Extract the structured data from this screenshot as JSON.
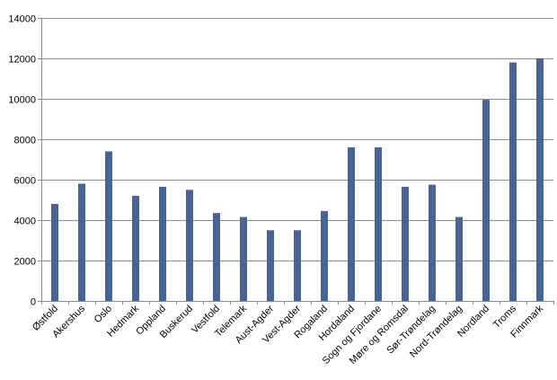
{
  "chart_data": {
    "type": "bar",
    "title": "",
    "xlabel": "",
    "ylabel": "",
    "ylim": [
      0,
      14000
    ],
    "yticks": [
      0,
      2000,
      4000,
      6000,
      8000,
      10000,
      12000,
      14000
    ],
    "grid": true,
    "bar_color": "#4a6395",
    "categories": [
      "Østfold",
      "Akershus",
      "Oslo",
      "Hedmark",
      "Oppland",
      "Buskerud",
      "Vestfold",
      "Telemark",
      "Aust-Agder",
      "Vest-Agder",
      "Rogaland",
      "Hordaland",
      "Sogn og Fjordane",
      "Møre og Romsdal",
      "Sør-Trøndelag",
      "Nord-Trøndelag",
      "Nordland",
      "Troms",
      "Finnmark"
    ],
    "values": [
      4800,
      5800,
      7400,
      5200,
      5650,
      5500,
      4350,
      4150,
      3500,
      3500,
      4450,
      7600,
      7600,
      5650,
      5750,
      4150,
      9950,
      11800,
      12000
    ]
  }
}
